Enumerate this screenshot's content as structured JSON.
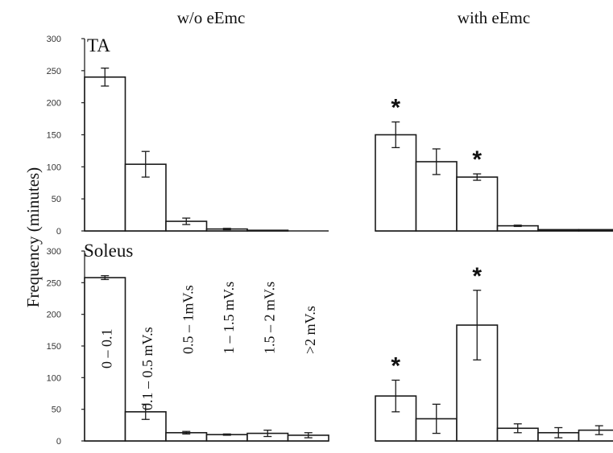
{
  "column_titles": [
    "w/o eEmc",
    "with eEmc"
  ],
  "ylabel": "Frequency (minutes)",
  "chart_data": [
    {
      "type": "bar",
      "panel": "TA, w/o eEmc",
      "label": "TA",
      "categories": [
        "0 – 0.1",
        "0.1 – 0.5 mV.s",
        "0.5 – 1mV.s",
        "1 – 1.5 mV.s",
        "1.5 – 2 mV.s",
        ">2 mV.s"
      ],
      "values": [
        240,
        104,
        15,
        3,
        1,
        0
      ],
      "errors": [
        14,
        20,
        5,
        1,
        0,
        0
      ],
      "significant": [
        false,
        false,
        false,
        false,
        false,
        false
      ],
      "yticks": [
        0,
        50,
        100,
        150,
        200,
        250,
        300
      ],
      "ylim": [
        0,
        300
      ]
    },
    {
      "type": "bar",
      "panel": "TA, with eEmc",
      "categories": [
        "0 – 0.1",
        "0.1 – 0.5 mV.s",
        "0.5 – 1mV.s",
        "1 – 1.5 mV.s",
        "1.5 – 2 mV.s",
        ">2 mV.s"
      ],
      "values": [
        150,
        108,
        84,
        8,
        2,
        2
      ],
      "errors": [
        20,
        20,
        5,
        1,
        0,
        0
      ],
      "significant": [
        true,
        false,
        true,
        false,
        false,
        false
      ],
      "significance_marker": "*",
      "ylim": [
        0,
        300
      ]
    },
    {
      "type": "bar",
      "panel": "Soleus, w/o eEmc",
      "label": "Soleus",
      "categories": [
        "0 – 0.1",
        "0.1 – 0.5 mV.s",
        "0.5 – 1mV.s",
        "1 – 1.5 mV.s",
        "1.5 – 2 mV.s",
        ">2 mV.s"
      ],
      "values": [
        258,
        46,
        13,
        10,
        12,
        9
      ],
      "errors": [
        3,
        12,
        2,
        1,
        5,
        4
      ],
      "significant": [
        false,
        false,
        false,
        false,
        false,
        false
      ],
      "yticks": [
        0,
        50,
        100,
        150,
        200,
        250,
        300
      ],
      "ylim": [
        0,
        300
      ]
    },
    {
      "type": "bar",
      "panel": "Soleus, with eEmc",
      "categories": [
        "0 – 0.1",
        "0.1 – 0.5 mV.s",
        "0.5 – 1mV.s",
        "1 – 1.5 mV.s",
        "1.5 – 2 mV.s",
        ">2 mV.s"
      ],
      "values": [
        71,
        35,
        183,
        20,
        13,
        17
      ],
      "errors": [
        25,
        23,
        55,
        7,
        8,
        7
      ],
      "significant": [
        true,
        false,
        true,
        false,
        false,
        false
      ],
      "significance_marker": "*",
      "ylim": [
        0,
        300
      ]
    }
  ]
}
